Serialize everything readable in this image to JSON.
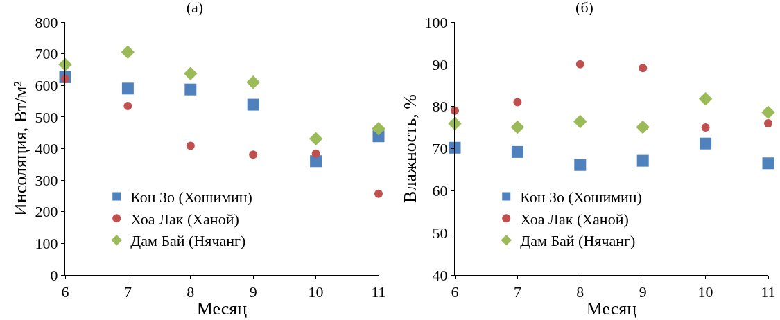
{
  "chart_data": [
    {
      "type": "scatter",
      "title": "(а)",
      "xlabel": "Месяц",
      "ylabel": "Инсоляция, Вт/м²",
      "x": [
        6,
        7,
        8,
        9,
        10,
        11
      ],
      "xlim": [
        6,
        11
      ],
      "xticks": [
        6,
        7,
        8,
        9,
        10,
        11
      ],
      "ylim": [
        0,
        800
      ],
      "yticks": [
        0,
        100,
        200,
        300,
        400,
        500,
        600,
        700,
        800
      ],
      "grid": false,
      "legend": "bottom",
      "series": [
        {
          "name": "Кон Зо (Хошимин)",
          "color": "#4f81bd",
          "marker": "square",
          "values": [
            626,
            590,
            587,
            539,
            360,
            439
          ]
        },
        {
          "name": "Хоа Лак (Ханой)",
          "color": "#c0504d",
          "marker": "circle",
          "values": [
            621,
            535,
            409,
            381,
            384,
            257
          ]
        },
        {
          "name": "Дам Бай (Нячанг)",
          "color": "#9bbb59",
          "marker": "diamond",
          "values": [
            666,
            705,
            637,
            610,
            431,
            463
          ]
        }
      ]
    },
    {
      "type": "scatter",
      "title": "(б)",
      "xlabel": "Месяц",
      "ylabel": "Влажность, %",
      "x": [
        6,
        7,
        8,
        9,
        10,
        11
      ],
      "xlim": [
        6,
        11
      ],
      "xticks": [
        6,
        7,
        8,
        9,
        10,
        11
      ],
      "ylim": [
        40,
        100
      ],
      "yticks": [
        40,
        50,
        60,
        70,
        80,
        90,
        100
      ],
      "grid": false,
      "legend": "bottom",
      "series": [
        {
          "name": "Кон Зо (Хошимин)",
          "color": "#4f81bd",
          "marker": "square",
          "values": [
            70.2,
            69.2,
            66.1,
            67.1,
            71.2,
            66.5
          ]
        },
        {
          "name": "Хоа Лак (Ханой)",
          "color": "#c0504d",
          "marker": "circle",
          "values": [
            79.0,
            81.0,
            90.0,
            89.1,
            75.0,
            76.0
          ]
        },
        {
          "name": "Дам Бай (Нячанг)",
          "color": "#9bbb59",
          "marker": "diamond",
          "values": [
            75.9,
            75.1,
            76.4,
            75.1,
            81.8,
            78.6
          ]
        }
      ]
    }
  ]
}
